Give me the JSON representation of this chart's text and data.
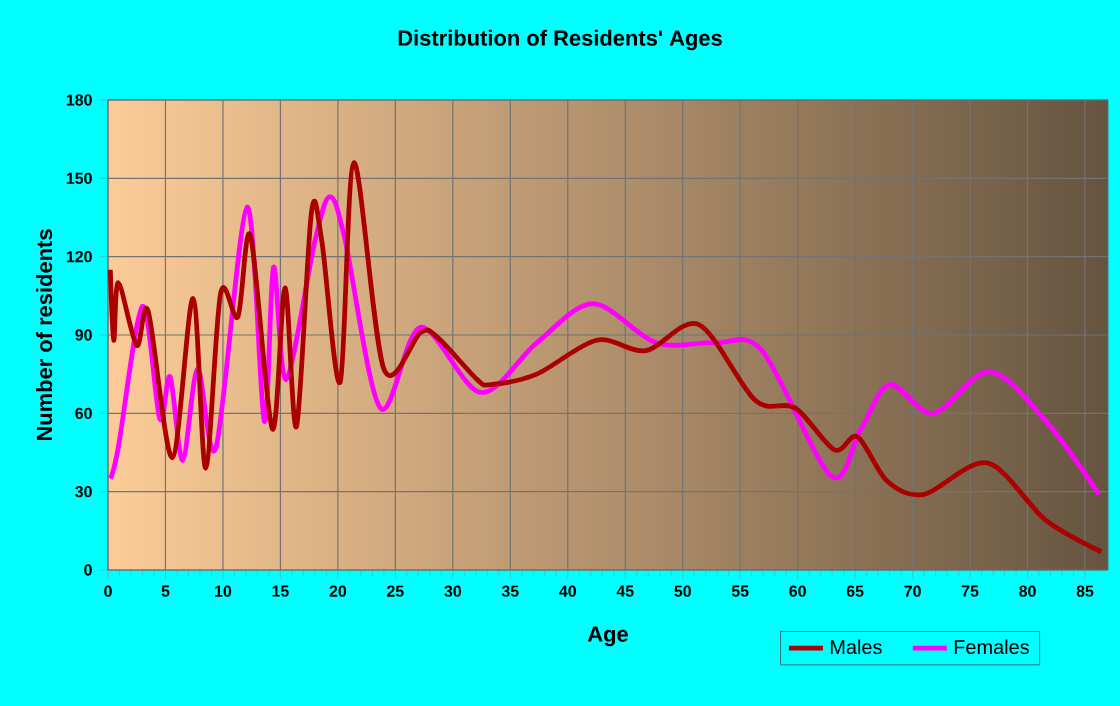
{
  "chart_data": {
    "type": "line",
    "title": "Distribution of Residents' Ages",
    "xlabel": "Age",
    "ylabel": "Number of residents",
    "xlim": [
      0,
      87
    ],
    "ylim": [
      0,
      180
    ],
    "xticks": [
      0,
      5,
      10,
      15,
      20,
      25,
      30,
      35,
      40,
      45,
      50,
      55,
      60,
      65,
      70,
      75,
      80,
      85
    ],
    "yticks": [
      0,
      30,
      60,
      90,
      120,
      150,
      180
    ],
    "grid": true,
    "legend": "bottom right",
    "marker": "none",
    "line_style": "solid",
    "series": [
      {
        "name": "Males",
        "color": "#aa0000",
        "x": [
          0.2,
          0.5,
          0.9,
          2.5,
          3.5,
          5.6,
          7.4,
          8.5,
          9.8,
          11.3,
          12.4,
          14.3,
          15.4,
          16.4,
          17.7,
          18.6,
          20.2,
          21.4,
          24,
          27.2,
          28.7,
          32.1,
          33.3,
          37.3,
          42.5,
          46.8,
          51.4,
          56.3,
          59.8,
          63.2,
          65.2,
          67.8,
          71,
          76.5,
          81.6,
          86.4
        ],
        "values": [
          115,
          88,
          110,
          86,
          99,
          43,
          104,
          39,
          106,
          97,
          128,
          54,
          108,
          55,
          137,
          126,
          72,
          156,
          77,
          91,
          89,
          73,
          71,
          75,
          88,
          84,
          94,
          65,
          62,
          46,
          51,
          34,
          29,
          41,
          19,
          7
        ]
      },
      {
        "name": "Females",
        "color": "#ff00ff",
        "x": [
          0.2,
          0.9,
          3,
          4.5,
          5.4,
          6.5,
          7.8,
          9.4,
          12.1,
          13.6,
          14.4,
          15.5,
          18,
          19.3,
          20.6,
          23.7,
          27.2,
          32.4,
          37.3,
          42.2,
          47.7,
          52.8,
          56.9,
          62.9,
          65.5,
          68,
          71.8,
          76.7,
          81.6,
          86.2
        ],
        "values": [
          35,
          47,
          101,
          58,
          74,
          42,
          77,
          47,
          139,
          57,
          116,
          73,
          126,
          143,
          127,
          62,
          93,
          68,
          87,
          102,
          87,
          87,
          84,
          36,
          54,
          71,
          60,
          76,
          57,
          29
        ]
      }
    ]
  }
}
